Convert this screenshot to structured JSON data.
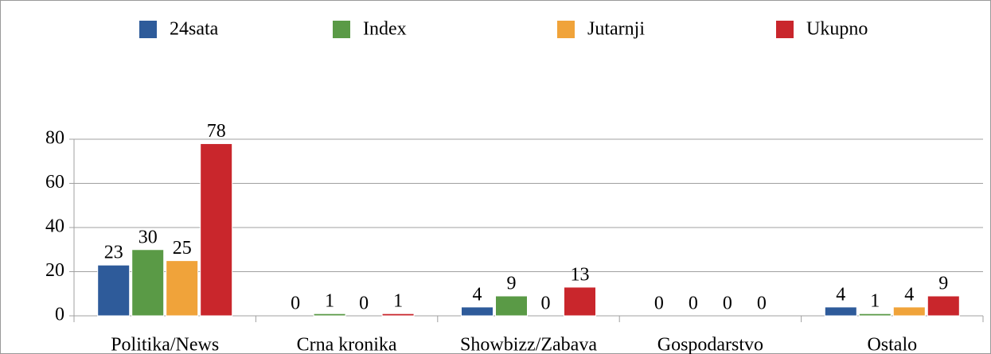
{
  "chart_data": {
    "type": "bar",
    "categories": [
      "Politika/News",
      "Crna kronika",
      "Showbizz/Zabava",
      "Gospodarstvo",
      "Ostalo"
    ],
    "series": [
      {
        "name": "24sata",
        "color": "#2e5b9a",
        "values": [
          23,
          0,
          4,
          0,
          4
        ]
      },
      {
        "name": "Index",
        "color": "#5a9a46",
        "values": [
          30,
          1,
          9,
          0,
          1
        ]
      },
      {
        "name": "Jutarnji",
        "color": "#f0a33a",
        "values": [
          25,
          0,
          0,
          0,
          4
        ]
      },
      {
        "name": "Ukupno",
        "color": "#c9262c",
        "values": [
          78,
          1,
          13,
          0,
          9
        ]
      }
    ],
    "ylim": [
      0,
      80
    ],
    "yticks": [
      0,
      20,
      40,
      60,
      80
    ],
    "grid": true,
    "legend": "top"
  }
}
